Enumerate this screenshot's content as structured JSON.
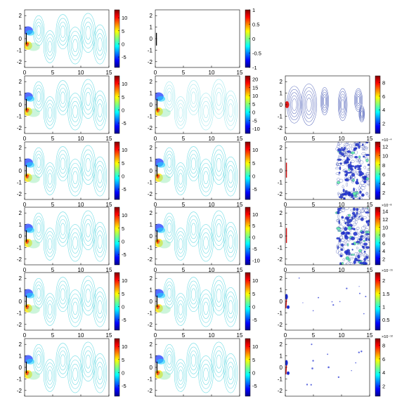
{
  "colors": {
    "jet": [
      "#00008f",
      "#0000ff",
      "#00ffff",
      "#ffff00",
      "#ff0000",
      "#800000"
    ],
    "contour": "#5cd7e0",
    "contour_far": "#3a4db0",
    "stroke": "#000000",
    "red_mark": "#d21010",
    "blue_mark": "#1a2bd0"
  },
  "chart_data": [
    {
      "row": 1,
      "col": 1,
      "type": "contour",
      "panel": "flow",
      "x_ticks": [
        "0",
        "5",
        "10",
        "15"
      ],
      "y_ticks": [
        "2",
        "1",
        "0",
        "-1",
        "-2"
      ],
      "xlim": [
        0,
        15
      ],
      "ylim": [
        -2.5,
        2.5
      ],
      "colorbar": {
        "ticks": [
          "10",
          "5",
          "0",
          "-5"
        ],
        "range": [
          -9,
          13
        ]
      }
    },
    {
      "row": 1,
      "col": 2,
      "type": "contour",
      "panel": "plate",
      "x_ticks": [
        "0",
        "5",
        "10",
        "15"
      ],
      "y_ticks": [
        "2",
        "1",
        "0",
        "-1",
        "-2"
      ],
      "xlim": [
        0,
        15
      ],
      "ylim": [
        -2.5,
        2.5
      ],
      "colorbar": {
        "ticks": [
          "1",
          "0.5",
          "0",
          "-0.5",
          "-1"
        ],
        "range": [
          -1,
          1
        ]
      }
    },
    {
      "row": 2,
      "col": 1,
      "type": "contour",
      "panel": "flow",
      "x_ticks": [
        "0",
        "5",
        "10",
        "15"
      ],
      "y_ticks": [
        "2",
        "1",
        "0",
        "-1",
        "-2"
      ],
      "xlim": [
        0,
        15
      ],
      "ylim": [
        -2.5,
        2.5
      ],
      "colorbar": {
        "ticks": [
          "10",
          "5",
          "0",
          "-5"
        ],
        "range": [
          -9,
          13
        ]
      }
    },
    {
      "row": 2,
      "col": 2,
      "type": "contour",
      "panel": "flow-light",
      "x_ticks": [
        "0",
        "5",
        "10",
        "15"
      ],
      "y_ticks": [
        "2",
        "1",
        "0",
        "-1",
        "-2"
      ],
      "xlim": [
        0,
        15
      ],
      "ylim": [
        -2.5,
        2.5
      ],
      "colorbar": {
        "ticks": [
          "20",
          "15",
          "10",
          "5",
          "0",
          "-5",
          "-10"
        ],
        "range": [
          -13,
          22
        ]
      }
    },
    {
      "row": 2,
      "col": 3,
      "type": "contour",
      "panel": "error-ring",
      "x_ticks": [
        "0",
        "5",
        "10",
        "15"
      ],
      "y_ticks": [
        "2",
        "1",
        "0",
        "-1",
        "-2"
      ],
      "xlim": [
        0,
        15
      ],
      "ylim": [
        -2.5,
        2.5
      ],
      "colorbar": {
        "ticks": [
          "8",
          "6",
          "4",
          "2"
        ],
        "range": [
          0.5,
          9
        ]
      }
    },
    {
      "row": 3,
      "col": 1,
      "type": "contour",
      "panel": "flow",
      "x_ticks": [
        "0",
        "5",
        "10",
        "15"
      ],
      "y_ticks": [
        "2",
        "1",
        "0",
        "-1",
        "-2"
      ],
      "xlim": [
        0,
        15
      ],
      "ylim": [
        -2.5,
        2.5
      ],
      "colorbar": {
        "ticks": [
          "10",
          "5",
          "0",
          "-5"
        ],
        "range": [
          -9,
          13
        ]
      }
    },
    {
      "row": 3,
      "col": 2,
      "type": "contour",
      "panel": "flow",
      "x_ticks": [
        "0",
        "5",
        "10",
        "15"
      ],
      "y_ticks": [
        "2",
        "1",
        "0",
        "-1",
        "-2"
      ],
      "xlim": [
        0,
        15
      ],
      "ylim": [
        -2.5,
        2.5
      ],
      "colorbar": {
        "ticks": [
          "10",
          "5",
          "0",
          "-5"
        ],
        "range": [
          -9,
          13
        ]
      }
    },
    {
      "row": 3,
      "col": 3,
      "type": "contour",
      "panel": "error-noise",
      "x_ticks": [
        "0",
        "5",
        "10",
        "15"
      ],
      "y_ticks": [
        "2",
        "1",
        "0",
        "-1",
        "-2"
      ],
      "xlim": [
        0,
        15
      ],
      "ylim": [
        -2.5,
        2.5
      ],
      "colorbar": {
        "ticks": [
          "12",
          "10",
          "8",
          "6",
          "4",
          "2"
        ],
        "range": [
          0.5,
          13
        ],
        "exponent": "×10⁻⁴"
      }
    },
    {
      "row": 4,
      "col": 1,
      "type": "contour",
      "panel": "flow",
      "x_ticks": [
        "0",
        "5",
        "10",
        "15"
      ],
      "y_ticks": [
        "2",
        "1",
        "0",
        "-1",
        "-2"
      ],
      "xlim": [
        0,
        15
      ],
      "ylim": [
        -2.5,
        2.5
      ],
      "colorbar": {
        "ticks": [
          "10",
          "5",
          "0",
          "-5"
        ],
        "range": [
          -9,
          13
        ]
      }
    },
    {
      "row": 4,
      "col": 2,
      "type": "contour",
      "panel": "flow",
      "x_ticks": [
        "0",
        "5",
        "10",
        "15"
      ],
      "y_ticks": [
        "2",
        "1",
        "0",
        "-1",
        "-2"
      ],
      "xlim": [
        0,
        15
      ],
      "ylim": [
        -2.5,
        2.5
      ],
      "colorbar": {
        "ticks": [
          "10",
          "5",
          "0",
          "-5",
          "-10"
        ],
        "range": [
          -12,
          13
        ]
      }
    },
    {
      "row": 4,
      "col": 3,
      "type": "contour",
      "panel": "error-noise",
      "x_ticks": [
        "0",
        "5",
        "10",
        "15"
      ],
      "y_ticks": [
        "2",
        "1",
        "0",
        "-1",
        "-2"
      ],
      "xlim": [
        0,
        15
      ],
      "ylim": [
        -2.5,
        2.5
      ],
      "colorbar": {
        "ticks": [
          "14",
          "12",
          "10",
          "8",
          "6",
          "4",
          "2"
        ],
        "range": [
          0.5,
          15
        ],
        "exponent": "×10⁻⁸"
      }
    },
    {
      "row": 5,
      "col": 1,
      "type": "contour",
      "panel": "flow",
      "x_ticks": [
        "0",
        "5",
        "10",
        "15"
      ],
      "y_ticks": [
        "2",
        "1",
        "0",
        "-1",
        "-2"
      ],
      "xlim": [
        0,
        15
      ],
      "ylim": [
        -2.5,
        2.5
      ],
      "colorbar": {
        "ticks": [
          "10",
          "5",
          "0",
          "-5"
        ],
        "range": [
          -9,
          13
        ]
      }
    },
    {
      "row": 5,
      "col": 2,
      "type": "contour",
      "panel": "flow",
      "x_ticks": [
        "0",
        "5",
        "10",
        "15"
      ],
      "y_ticks": [
        "2",
        "1",
        "0",
        "-1",
        "-2"
      ],
      "xlim": [
        0,
        15
      ],
      "ylim": [
        -2.5,
        2.5
      ],
      "colorbar": {
        "ticks": [
          "10",
          "5",
          "0",
          "-5"
        ],
        "range": [
          -9,
          13
        ]
      }
    },
    {
      "row": 5,
      "col": 3,
      "type": "contour",
      "panel": "error-sparse",
      "x_ticks": [
        "0",
        "5",
        "10",
        "15"
      ],
      "y_ticks": [
        "2",
        "1",
        "0",
        "-1",
        "-2"
      ],
      "xlim": [
        0,
        15
      ],
      "ylim": [
        -2.5,
        2.5
      ],
      "colorbar": {
        "ticks": [
          "2",
          "1.5",
          "1",
          "0.5"
        ],
        "range": [
          0.1,
          2.3
        ],
        "exponent": "×10⁻¹¹"
      }
    },
    {
      "row": 6,
      "col": 1,
      "type": "contour",
      "panel": "flow",
      "x_ticks": [
        "0",
        "5",
        "10",
        "15"
      ],
      "y_ticks": [
        "2",
        "1",
        "0",
        "-1",
        "-2"
      ],
      "xlim": [
        0,
        15
      ],
      "ylim": [
        -2.5,
        2.5
      ],
      "colorbar": {
        "ticks": [
          "10",
          "5",
          "0",
          "-5"
        ],
        "range": [
          -9,
          13
        ]
      }
    },
    {
      "row": 6,
      "col": 2,
      "type": "contour",
      "panel": "flow",
      "x_ticks": [
        "0",
        "5",
        "10",
        "15"
      ],
      "y_ticks": [
        "2",
        "1",
        "0",
        "-1",
        "-2"
      ],
      "xlim": [
        0,
        15
      ],
      "ylim": [
        -2.5,
        2.5
      ],
      "colorbar": {
        "ticks": [
          "10",
          "5",
          "0",
          "-5"
        ],
        "range": [
          -9,
          13
        ]
      }
    },
    {
      "row": 6,
      "col": 3,
      "type": "contour",
      "panel": "error-sparse",
      "x_ticks": [
        "0",
        "5",
        "10",
        "15"
      ],
      "y_ticks": [
        "2",
        "1",
        "0",
        "-1",
        "-2"
      ],
      "xlim": [
        0,
        15
      ],
      "ylim": [
        -2.5,
        2.5
      ],
      "colorbar": {
        "ticks": [
          "8",
          "6",
          "4",
          "2"
        ],
        "range": [
          0.5,
          9
        ],
        "exponent": "×10⁻¹²"
      }
    }
  ]
}
